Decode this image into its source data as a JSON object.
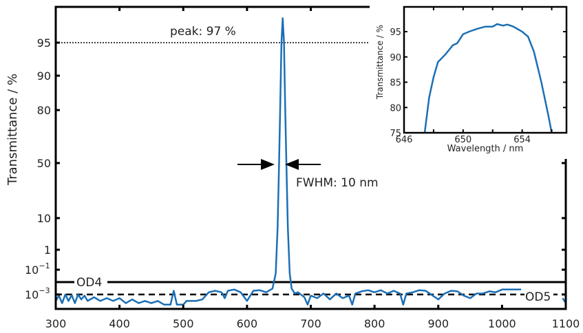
{
  "chart_data": [
    {
      "type": "line",
      "ylabel": "Transmittance / %",
      "xlabel": "",
      "xlim": [
        300,
        1100
      ],
      "x_ticks": [
        300,
        400,
        500,
        600,
        700,
        800,
        900,
        1000,
        1100
      ],
      "y_scale": "nonlinear (log of T at low end, log of 100-T at high end)",
      "y_ticks": [
        {
          "value": 95,
          "label": "95"
        },
        {
          "value": 90,
          "label": "90"
        },
        {
          "value": 80,
          "label": "80"
        },
        {
          "value": 50,
          "label": "50"
        },
        {
          "value": 10,
          "label": "10"
        },
        {
          "value": 1,
          "label": "1"
        },
        {
          "value": 0.1,
          "label": "10",
          "sup": "−1"
        },
        {
          "value": 0.001,
          "label": "10",
          "sup": "−3"
        }
      ],
      "color": "#1a6fb5",
      "reference_lines": [
        {
          "label": "OD4",
          "value": 0.01,
          "style": "solid"
        },
        {
          "label": "OD5",
          "value": 0.001,
          "style": "dashed"
        },
        {
          "label": "",
          "value": 95,
          "style": "dotted"
        }
      ],
      "annotations": {
        "peak": "peak:  97 %",
        "fwhm": "FWHM: 10 nm"
      },
      "series": [
        {
          "x": [
            300,
            305,
            310,
            315,
            320,
            325,
            330,
            335,
            340,
            345,
            350,
            360,
            370,
            380,
            390,
            400,
            410,
            420,
            430,
            440,
            450,
            460,
            470,
            480,
            485,
            490,
            500,
            505,
            510,
            520,
            530,
            540,
            550,
            560,
            565,
            570,
            580,
            590,
            600,
            610,
            620,
            630,
            640,
            645,
            648,
            650,
            652,
            654,
            656,
            658,
            660,
            662,
            664,
            667,
            670,
            675,
            680,
            690,
            695,
            700,
            710,
            720,
            730,
            740,
            750,
            760,
            765,
            770,
            780,
            790,
            800,
            810,
            820,
            830,
            840,
            845,
            850,
            860,
            870,
            880,
            890,
            900,
            910,
            920,
            930,
            940,
            950,
            960,
            970,
            980,
            990,
            1000,
            1010,
            1020,
            1030
          ],
          "y": [
            0.0003,
            0.0008,
            0.0002,
            0.001,
            0.0003,
            0.0009,
            0.0002,
            0.001,
            0.0004,
            0.0008,
            0.0003,
            0.0006,
            0.0003,
            0.0005,
            0.0003,
            0.0005,
            0.0002,
            0.0004,
            0.0002,
            0.0003,
            0.0002,
            0.0003,
            0.00015,
            0.00015,
            0.002,
            0.00015,
            0.00015,
            0.0003,
            0.0003,
            0.0003,
            0.0004,
            0.0015,
            0.002,
            0.0015,
            0.0005,
            0.002,
            0.0025,
            0.0015,
            0.0003,
            0.002,
            0.0022,
            0.0015,
            0.003,
            0.05,
            5,
            40,
            80,
            95,
            97,
            95,
            80,
            40,
            5,
            0.05,
            0.003,
            0.0012,
            0.0015,
            0.0006,
            0.00015,
            0.0008,
            0.0005,
            0.0012,
            0.0004,
            0.0012,
            0.0005,
            0.0008,
            0.00015,
            0.0012,
            0.0018,
            0.0022,
            0.0015,
            0.0022,
            0.0012,
            0.002,
            0.0012,
            0.00015,
            0.0012,
            0.0015,
            0.0022,
            0.002,
            0.0009,
            0.0004,
            0.0012,
            0.002,
            0.0018,
            0.0008,
            0.0005,
            0.0012,
            0.0012,
            0.0018,
            0.0015,
            0.0025,
            0.0025,
            0.0025,
            0.0025
          ]
        },
        {
          "x": [
            1095,
            1100
          ],
          "y": [
            0.0005,
            0.0002
          ]
        }
      ]
    },
    {
      "type": "line",
      "title": "",
      "xlabel": "Wavelength / nm",
      "ylabel": "Transmittance / %",
      "xlim": [
        646,
        657
      ],
      "ylim": [
        75,
        100
      ],
      "x_ticks": [
        646,
        648,
        650,
        652,
        654,
        656
      ],
      "x_tick_labels": [
        "646",
        "",
        "650",
        "",
        "654",
        ""
      ],
      "y_ticks": [
        75,
        80,
        85,
        90,
        95
      ],
      "color": "#1a6fb5",
      "series": [
        {
          "x": [
            647.4,
            647.7,
            648,
            648.3,
            648.8,
            649.3,
            649.6,
            650,
            650.4,
            651,
            651.5,
            652,
            652.3,
            652.7,
            653,
            653.4,
            654,
            654.4,
            654.8,
            655.3,
            655.8,
            656
          ],
          "y": [
            75,
            82,
            86,
            89,
            90.5,
            92.3,
            92.7,
            94.5,
            95,
            95.6,
            96,
            96,
            96.5,
            96.2,
            96.4,
            96,
            95,
            94,
            91,
            85,
            78,
            75
          ]
        }
      ]
    }
  ]
}
